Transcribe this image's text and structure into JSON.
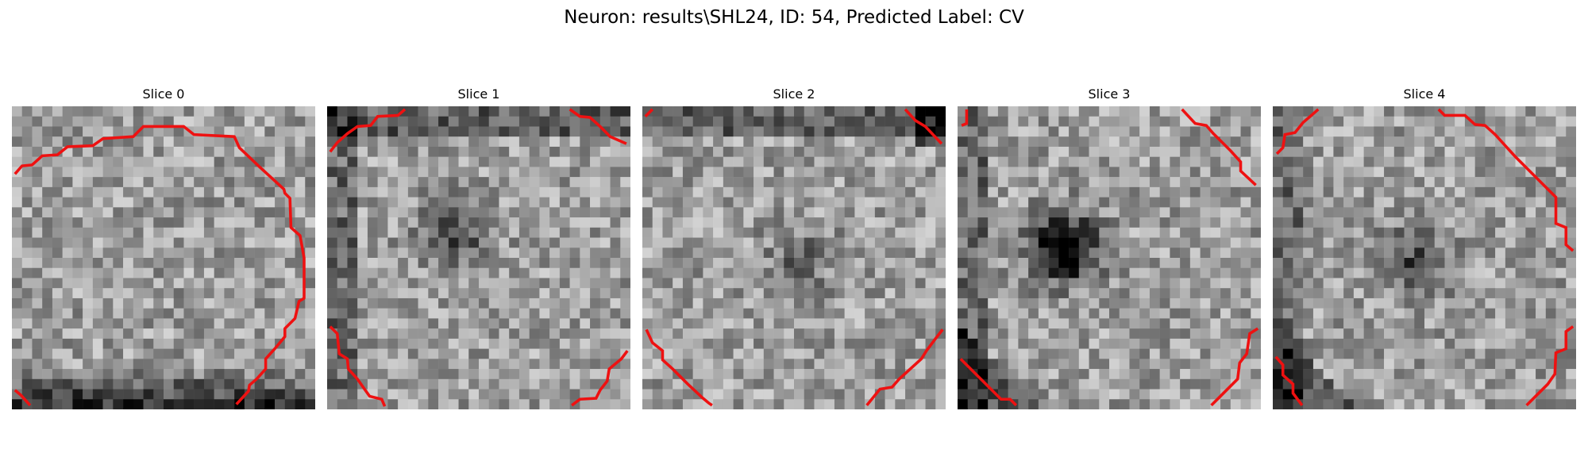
{
  "figure": {
    "title": "Neuron: results\\SHL24, ID: 54, Predicted Label: CV",
    "contour_color": "#ee1111",
    "colormap": "grayscale",
    "panels": [
      {
        "label": "Slice 0",
        "dark_blob": [
          0.5,
          0.55,
          0.0
        ],
        "dark_edge": "bottom"
      },
      {
        "label": "Slice 1",
        "dark_blob": [
          0.4,
          0.4,
          0.35
        ],
        "dark_edge": "top-left"
      },
      {
        "label": "Slice 2",
        "dark_blob": [
          0.5,
          0.5,
          0.2
        ],
        "dark_edge": "top-right"
      },
      {
        "label": "Slice 3",
        "dark_blob": [
          0.33,
          0.45,
          0.75
        ],
        "dark_edge": "bottom-left"
      },
      {
        "label": "Slice 4",
        "dark_blob": [
          0.45,
          0.5,
          0.35
        ],
        "dark_edge": "bottom-left"
      }
    ]
  }
}
